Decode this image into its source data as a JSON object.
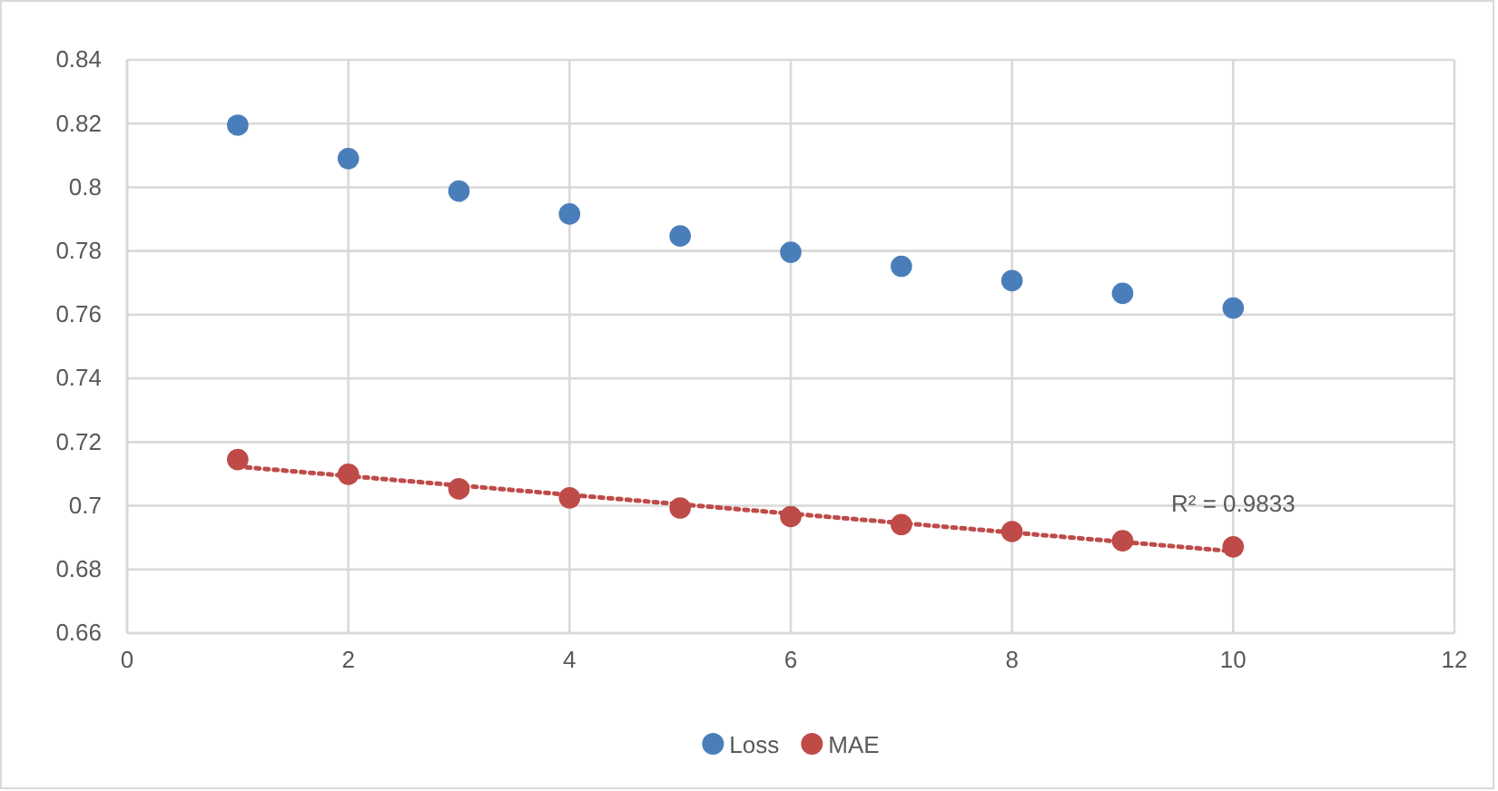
{
  "chart_data": {
    "type": "scatter",
    "x": [
      1,
      2,
      3,
      4,
      5,
      6,
      7,
      8,
      9,
      10
    ],
    "series": [
      {
        "name": "Loss",
        "color": "#4a7ebb",
        "values": [
          0.8195,
          0.809,
          0.7988,
          0.7916,
          0.7847,
          0.7796,
          0.7752,
          0.7707,
          0.7667,
          0.7621
        ]
      },
      {
        "name": "MAE",
        "color": "#be4b48",
        "values": [
          0.7145,
          0.7099,
          0.7053,
          0.7025,
          0.6993,
          0.6966,
          0.6941,
          0.6919,
          0.689,
          0.6871
        ]
      },
      {
        "type": "line",
        "x": [
          1,
          10
        ],
        "color": "#be4b48",
        "line_style": "dotted",
        "marker": "none",
        "values": [
          0.7123,
          0.6857
        ]
      }
    ],
    "xlim": [
      0,
      12
    ],
    "xticks": [
      0,
      2,
      4,
      6,
      8,
      10,
      12
    ],
    "ylim": [
      0.66,
      0.84
    ],
    "yticks": [
      0.66,
      0.68,
      0.7,
      0.72,
      0.74,
      0.76,
      0.78,
      0.8,
      0.82,
      0.84
    ],
    "grid": true,
    "legend": "bottom",
    "marker": "circle",
    "annotations": [
      "R² = 0.9833"
    ]
  }
}
